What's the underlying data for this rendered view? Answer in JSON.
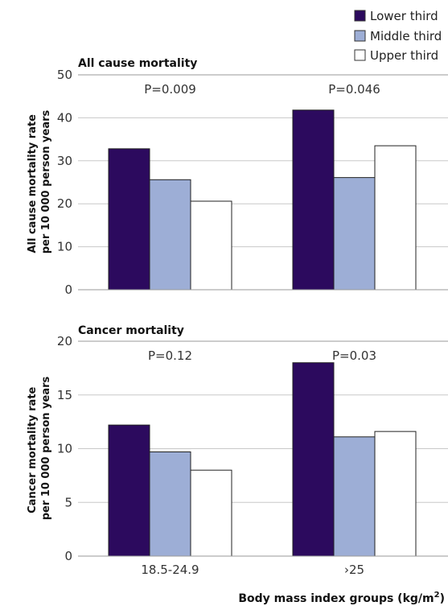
{
  "legend": [
    {
      "name": "Lower third",
      "color": "#2c0a5e"
    },
    {
      "name": "Middle third",
      "color": "#9daed6"
    },
    {
      "name": "Upper third",
      "color": "#ffffff"
    }
  ],
  "xlabel_main": "Body mass index groups (kg/m",
  "xlabel_sup": "2",
  "xlabel_end": ")",
  "chart_data": [
    {
      "type": "bar",
      "title": "All cause mortality",
      "ylabel_lines": [
        "All cause mortality rate",
        "per 10 000 person years"
      ],
      "categories": [
        "18.5-24.9",
        "›25"
      ],
      "ylim": [
        0,
        50
      ],
      "yticks": [
        0,
        10,
        20,
        30,
        40,
        50
      ],
      "series": [
        {
          "name": "Lower third",
          "values": [
            32.8,
            41.8
          ]
        },
        {
          "name": "Middle third",
          "values": [
            25.6,
            26.1
          ]
        },
        {
          "name": "Upper third",
          "values": [
            20.6,
            33.5
          ]
        }
      ],
      "annotations": [
        "P=0.009",
        "P=0.046"
      ]
    },
    {
      "type": "bar",
      "title": "Cancer mortality",
      "ylabel_lines": [
        "Cancer mortality rate",
        "per 10 000 person years"
      ],
      "categories": [
        "18.5-24.9",
        "›25"
      ],
      "ylim": [
        0,
        20
      ],
      "yticks": [
        0,
        5,
        10,
        15,
        20
      ],
      "series": [
        {
          "name": "Lower third",
          "values": [
            12.2,
            18.0
          ]
        },
        {
          "name": "Middle third",
          "values": [
            9.7,
            11.1
          ]
        },
        {
          "name": "Upper third",
          "values": [
            8.0,
            11.6
          ]
        }
      ],
      "annotations": [
        "P=0.12",
        "P=0.03"
      ]
    }
  ]
}
